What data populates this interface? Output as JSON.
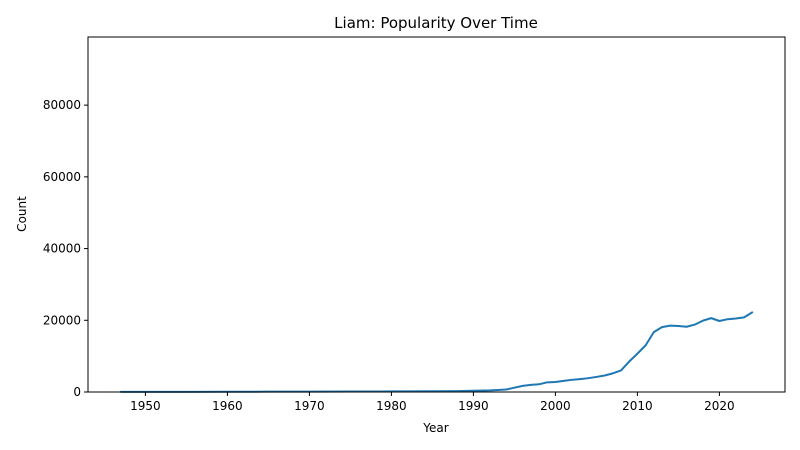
{
  "chart_data": {
    "type": "line",
    "title": "Liam: Popularity Over Time",
    "xlabel": "Year",
    "ylabel": "Count",
    "xlim": [
      1943,
      2028
    ],
    "ylim": [
      0,
      99000
    ],
    "xticks": [
      1950,
      1960,
      1970,
      1980,
      1990,
      2000,
      2010,
      2020
    ],
    "yticks": [
      0,
      20000,
      40000,
      60000,
      80000
    ],
    "grid": false,
    "legend": "none",
    "line_color": "#1f77b4",
    "series": [
      {
        "x": [
          1947,
          1950,
          1955,
          1960,
          1965,
          1970,
          1975,
          1980,
          1985,
          1988,
          1990,
          1992,
          1993,
          1994,
          1995,
          1996,
          1997,
          1998,
          1999,
          2000,
          2001,
          2002,
          2003,
          2004,
          2005,
          2006,
          2007,
          2008,
          2009,
          2010,
          2011,
          2012,
          2013,
          2014,
          2015,
          2016,
          2017,
          2018,
          2019,
          2020,
          2021,
          2022,
          2023,
          2024
        ],
        "y": [
          30,
          40,
          50,
          70,
          90,
          110,
          130,
          160,
          200,
          250,
          350,
          450,
          550,
          700,
          1200,
          1700,
          2000,
          2150,
          2700,
          2800,
          3100,
          3400,
          3600,
          3850,
          4200,
          4600,
          5200,
          6000,
          8500,
          10700,
          13000,
          16700,
          18100,
          18500,
          18400,
          18200,
          18800,
          19900,
          20600,
          19800,
          20300,
          20500,
          20800,
          22200
        ]
      }
    ]
  }
}
